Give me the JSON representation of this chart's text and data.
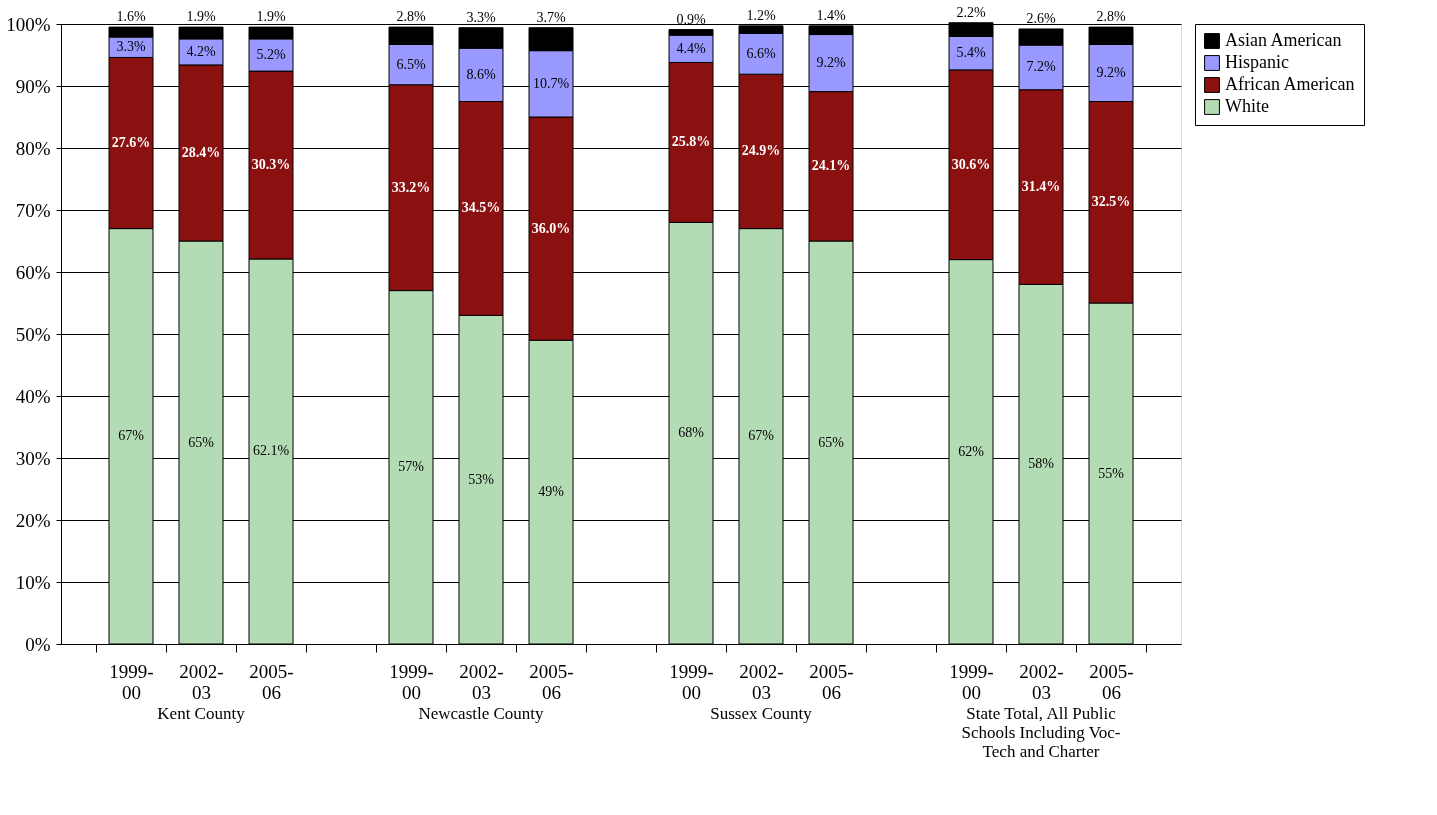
{
  "chart_data": {
    "type": "bar",
    "stacked": true,
    "categories": [
      "1999-00",
      "2002-03",
      "2005-06",
      null,
      "1999-00",
      "2002-03",
      "2005-06",
      null,
      "1999-00",
      "2002-03",
      "2005-06",
      null,
      "1999-00",
      "2002-03",
      "2005-06"
    ],
    "series": [
      {
        "name": "White",
        "color": "#b4dcb4",
        "values": [
          67,
          65,
          62.1,
          null,
          57,
          53,
          49,
          null,
          68,
          67,
          65,
          null,
          62,
          58,
          55
        ],
        "value_labels": [
          "67%",
          "65%",
          "62.1%",
          null,
          "57%",
          "53%",
          "49%",
          null,
          "68%",
          "67%",
          "65%",
          null,
          "62%",
          "58%",
          "55%"
        ]
      },
      {
        "name": "African American",
        "color": "#8b1010",
        "values": [
          27.6,
          28.4,
          30.3,
          null,
          33.2,
          34.5,
          36.0,
          null,
          25.8,
          24.9,
          24.1,
          null,
          30.6,
          31.4,
          32.5
        ],
        "value_labels": [
          "27.6%",
          "28.4%",
          "30.3%",
          null,
          "33.2%",
          "34.5%",
          "36.0%",
          null,
          "25.8%",
          "24.9%",
          "24.1%",
          null,
          "30.6%",
          "31.4%",
          "32.5%"
        ]
      },
      {
        "name": "Hispanic",
        "color": "#9999ff",
        "values": [
          3.3,
          4.2,
          5.2,
          null,
          6.5,
          8.6,
          10.7,
          null,
          4.4,
          6.6,
          9.2,
          null,
          5.4,
          7.2,
          9.2
        ],
        "value_labels": [
          "3.3%",
          "4.2%",
          "5.2%",
          null,
          "6.5%",
          "8.6%",
          "10.7%",
          null,
          "4.4%",
          "6.6%",
          "9.2%",
          null,
          "5.4%",
          "7.2%",
          "9.2%"
        ]
      },
      {
        "name": "Asian American",
        "color": "#000000",
        "values": [
          1.6,
          1.9,
          1.9,
          null,
          2.8,
          3.3,
          3.7,
          null,
          0.9,
          1.2,
          1.4,
          null,
          2.2,
          2.6,
          2.8
        ],
        "value_labels": [
          "1.6%",
          "1.9%",
          "1.9%",
          null,
          "2.8%",
          "3.3%",
          "3.7%",
          null,
          "0.9%",
          "1.2%",
          "1.4%",
          null,
          "2.2%",
          "2.6%",
          "2.8%"
        ]
      }
    ],
    "ylim": [
      0,
      100
    ],
    "yticks": [
      {
        "value": 0,
        "label": "0%"
      },
      {
        "value": 10,
        "label": "10%"
      },
      {
        "value": 20,
        "label": "20%"
      },
      {
        "value": 30,
        "label": "30%"
      },
      {
        "value": 40,
        "label": "40%"
      },
      {
        "value": 50,
        "label": "50%"
      },
      {
        "value": 60,
        "label": "60%"
      },
      {
        "value": 70,
        "label": "70%"
      },
      {
        "value": 80,
        "label": "80%"
      },
      {
        "value": 90,
        "label": "90%"
      },
      {
        "value": 100,
        "label": "100%"
      }
    ],
    "grid": "y",
    "legend": "right",
    "annotations": [
      "Kent County",
      "Newcastle County",
      "Sussex County",
      "State Total, All Public Schools Including Voc-Tech and Charter"
    ]
  }
}
